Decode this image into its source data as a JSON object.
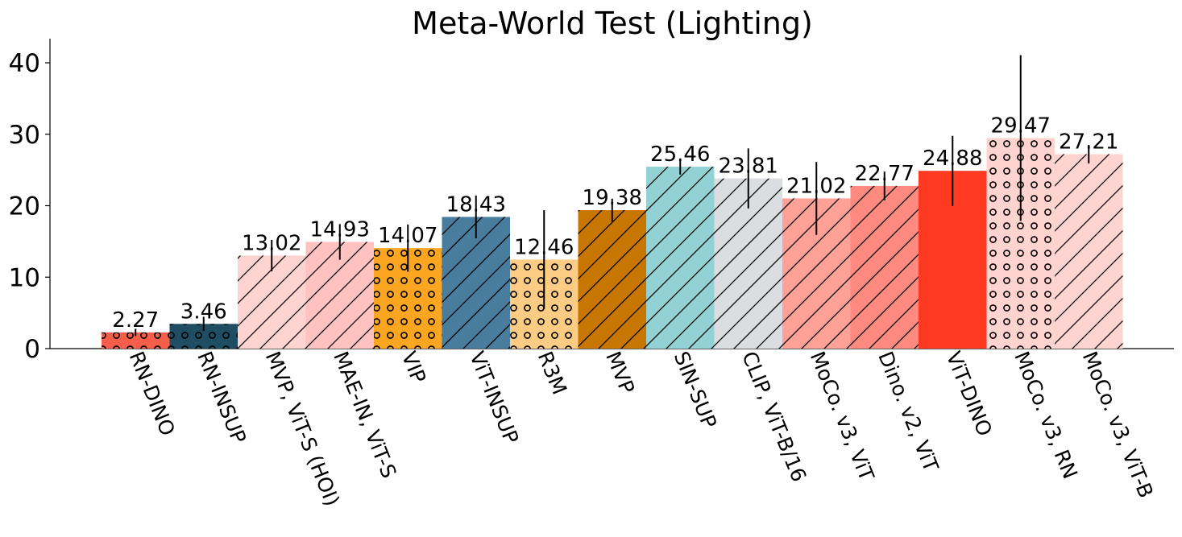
{
  "chart_data": {
    "type": "bar",
    "title": "Meta-World Test (Lighting)",
    "xlabel": "",
    "ylabel": "",
    "ylim": [
      0,
      43
    ],
    "yticks": [
      "0",
      "10",
      "20",
      "30",
      "40"
    ],
    "ytick_values": [
      0,
      10,
      20,
      30,
      40
    ],
    "grid": false,
    "legend": "none",
    "categories": [
      "RN-DINO",
      "RN-INSUP",
      "MVP, ViT-S (HOI)",
      "MAE-IN, ViT-S",
      "VIP",
      "ViT-INSUP",
      "R3M",
      "MVP",
      "SIN-SUP",
      "CLIP, ViT-B/16",
      "MoCo. v3, ViT",
      "Dino. v2, ViT",
      "ViT-DINO",
      "MoCo. v3, RN",
      "MoCo. v3, ViT-B"
    ],
    "values": [
      2.27,
      3.46,
      13.02,
      14.93,
      14.07,
      18.43,
      12.46,
      19.38,
      25.46,
      23.81,
      21.02,
      22.77,
      24.88,
      29.47,
      27.21
    ],
    "value_labels": [
      "2.27",
      "3.46",
      "13.02",
      "14.93",
      "14.07",
      "18.43",
      "12.46",
      "19.38",
      "25.46",
      "23.81",
      "21.02",
      "22.77",
      "24.88",
      "29.47",
      "27.21"
    ],
    "errors": [
      0.5,
      1.0,
      2.2,
      2.5,
      3.3,
      3.0,
      6.9,
      1.6,
      1.1,
      4.2,
      5.1,
      2.0,
      4.9,
      11.6,
      1.3
    ],
    "colors": [
      "#f85e4a",
      "#1f4e63",
      "#ffd3cf",
      "#ffc2c0",
      "#fba521",
      "#487d9e",
      "#fccb84",
      "#c77602",
      "#93d2d4",
      "#dcdde1",
      "#ffa196",
      "#ff8b80",
      "#ff3a20",
      "#ffd3cf",
      "#ffd3cf"
    ],
    "hatches": [
      "circles",
      "circles",
      "diagonal",
      "diagonal",
      "circles",
      "diagonal",
      "circles",
      "diagonal",
      "diagonal",
      "diagonal",
      "diagonal",
      "diagonal",
      "none",
      "circles",
      "diagonal"
    ]
  }
}
